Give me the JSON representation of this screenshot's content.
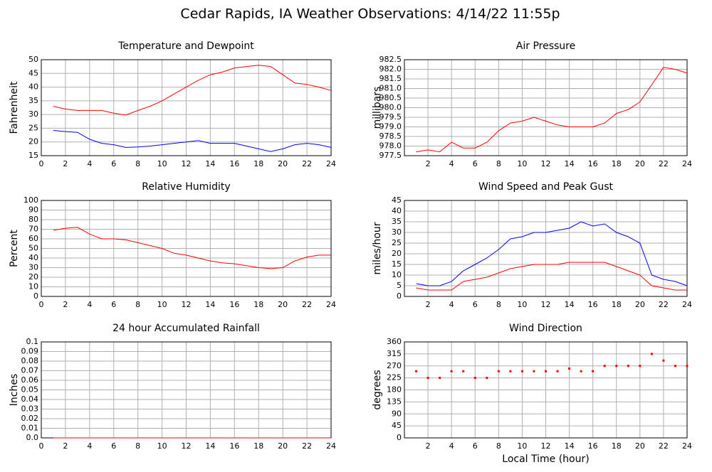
{
  "title": "Cedar Rapids, IA Weather Observations: 4/14/22 11:55p",
  "chart_data": [
    {
      "type": "line",
      "title": "Temperature and Dewpoint",
      "ylabel": "Fahrenheit",
      "grid": true,
      "x": [
        1,
        2,
        3,
        4,
        5,
        6,
        7,
        8,
        9,
        10,
        11,
        12,
        13,
        14,
        15,
        16,
        17,
        18,
        19,
        20,
        21,
        22,
        23,
        24
      ],
      "xlim": [
        0,
        24
      ],
      "xticks": [
        0,
        2,
        4,
        6,
        8,
        10,
        12,
        14,
        16,
        18,
        20,
        22,
        24
      ],
      "ylim": [
        15,
        50
      ],
      "yticks": [
        15,
        20,
        25,
        30,
        35,
        40,
        45,
        50
      ],
      "series": [
        {
          "color": "#ff0000",
          "values": [
            33,
            32,
            31.5,
            31.5,
            31.5,
            30.5,
            29.8,
            31.5,
            33,
            35,
            37.5,
            40,
            42.5,
            44.5,
            45.5,
            47,
            47.5,
            48,
            47.5,
            44.5,
            41.5,
            41,
            40,
            38.8
          ]
        },
        {
          "color": "#0000ff",
          "values": [
            24.2,
            23.8,
            23.5,
            21,
            19.5,
            19,
            18,
            18.2,
            18.5,
            19,
            19.5,
            20,
            20.5,
            19.5,
            19.5,
            19.5,
            18.5,
            17.5,
            16.5,
            17.5,
            19,
            19.5,
            19,
            18
          ]
        }
      ]
    },
    {
      "type": "line",
      "title": "Air Pressure",
      "ylabel": "millibars",
      "grid": true,
      "x": [
        1,
        2,
        3,
        4,
        5,
        6,
        7,
        8,
        9,
        10,
        11,
        12,
        13,
        14,
        15,
        16,
        17,
        18,
        19,
        20,
        21,
        22,
        23,
        24
      ],
      "xlim": [
        0,
        24
      ],
      "xticks": [
        2,
        4,
        6,
        8,
        10,
        12,
        14,
        16,
        18,
        20,
        22,
        24
      ],
      "ylim": [
        977.5,
        982.5
      ],
      "yticks": [
        977.5,
        {
          "value": 978,
          "label": "978.0"
        },
        978.5,
        {
          "value": 979,
          "label": "979.0"
        },
        979.5,
        {
          "value": 980,
          "label": "980.0"
        },
        980.5,
        {
          "value": 981,
          "label": "981.0"
        },
        981.5,
        {
          "value": 982,
          "label": "982.0"
        },
        982.5
      ],
      "series": [
        {
          "color": "#ff0000",
          "values": [
            977.7,
            977.8,
            977.7,
            978.2,
            977.9,
            977.9,
            978.2,
            978.8,
            979.2,
            979.3,
            979.5,
            979.3,
            979.1,
            979,
            979,
            979,
            979.2,
            979.7,
            979.9,
            980.3,
            981.2,
            982.1,
            982,
            981.8
          ]
        }
      ]
    },
    {
      "type": "line",
      "title": "Relative Humidity",
      "ylabel": "Percent",
      "grid": true,
      "x": [
        1,
        2,
        3,
        4,
        5,
        6,
        7,
        8,
        9,
        10,
        11,
        12,
        13,
        14,
        15,
        16,
        17,
        18,
        19,
        20,
        21,
        22,
        23,
        24
      ],
      "xlim": [
        0,
        24
      ],
      "xticks": [
        0,
        2,
        4,
        6,
        8,
        10,
        12,
        14,
        16,
        18,
        20,
        22,
        24
      ],
      "ylim": [
        0,
        100
      ],
      "yticks": [
        0,
        10,
        20,
        30,
        40,
        50,
        60,
        70,
        80,
        90,
        100
      ],
      "series": [
        {
          "color": "#ff0000",
          "values": [
            69,
            71,
            72,
            65,
            60,
            60,
            59,
            56,
            53,
            50,
            45,
            43,
            40,
            37,
            35,
            34,
            32,
            30,
            29,
            30,
            37,
            41,
            43,
            43
          ]
        }
      ]
    },
    {
      "type": "line",
      "title": "Wind Speed and Peak Gust",
      "ylabel": "miles/hour",
      "grid": true,
      "x": [
        1,
        2,
        3,
        4,
        5,
        6,
        7,
        8,
        9,
        10,
        11,
        12,
        13,
        14,
        15,
        16,
        17,
        18,
        19,
        20,
        21,
        22,
        23,
        24
      ],
      "xlim": [
        0,
        24
      ],
      "xticks": [
        2,
        4,
        6,
        8,
        10,
        12,
        14,
        16,
        18,
        20,
        22,
        24
      ],
      "ylim": [
        0,
        45
      ],
      "yticks": [
        0,
        5,
        10,
        15,
        20,
        25,
        30,
        35,
        40,
        45
      ],
      "series": [
        {
          "color": "#0000ff",
          "values": [
            6,
            5,
            5,
            7,
            12,
            15,
            18,
            22,
            27,
            28,
            30,
            30,
            31,
            32,
            35,
            33,
            34,
            30,
            28,
            25,
            10,
            8,
            7,
            5
          ]
        },
        {
          "color": "#ff0000",
          "values": [
            4,
            3,
            3,
            3,
            7,
            8,
            9,
            11,
            13,
            14,
            15,
            15,
            15,
            16,
            16,
            16,
            16,
            14,
            12,
            10,
            5,
            4,
            3,
            3
          ]
        }
      ]
    },
    {
      "type": "line",
      "title": "24 hour Accumulated Rainfall",
      "ylabel": "Inches",
      "grid": true,
      "x": [
        1,
        2,
        3,
        4,
        5,
        6,
        7,
        8,
        9,
        10,
        11,
        12,
        13,
        14,
        15,
        16,
        17,
        18,
        19,
        20,
        21,
        22,
        23,
        24
      ],
      "xlim": [
        0,
        24
      ],
      "xticks": [
        0,
        2,
        4,
        6,
        8,
        10,
        12,
        14,
        16,
        18,
        20,
        22,
        24
      ],
      "ylim": [
        0,
        0.1
      ],
      "yticks": [
        {
          "value": 0,
          "label": "0.0"
        },
        0.01,
        0.02,
        0.03,
        0.04,
        0.05,
        0.06,
        0.07,
        0.08,
        0.09,
        0.1
      ],
      "series": [
        {
          "color": "#ff0000",
          "values": [
            0,
            0,
            0,
            0,
            0,
            0,
            0,
            0,
            0,
            0,
            0,
            0,
            0,
            0,
            0,
            0,
            0,
            0,
            0,
            0,
            0,
            0,
            0,
            0
          ]
        }
      ]
    },
    {
      "type": "scatter",
      "title": "Wind Direction",
      "ylabel": "degrees",
      "xlabel": "Local Time (hour)",
      "grid": true,
      "x": [
        1,
        2,
        3,
        4,
        5,
        6,
        7,
        8,
        9,
        10,
        11,
        12,
        13,
        14,
        15,
        16,
        17,
        18,
        19,
        20,
        21,
        22,
        23,
        24
      ],
      "xlim": [
        0,
        24
      ],
      "xticks": [
        2,
        4,
        6,
        8,
        10,
        12,
        14,
        16,
        18,
        20,
        22,
        24
      ],
      "ylim": [
        0,
        360
      ],
      "yticks": [
        0,
        45,
        90,
        135,
        180,
        225,
        270,
        315,
        360
      ],
      "series": [
        {
          "color": "#ff0000",
          "values": [
            250,
            225,
            225,
            250,
            250,
            225,
            225,
            250,
            250,
            250,
            250,
            250,
            250,
            260,
            250,
            250,
            270,
            270,
            270,
            270,
            315,
            290,
            270,
            270
          ]
        }
      ]
    }
  ]
}
